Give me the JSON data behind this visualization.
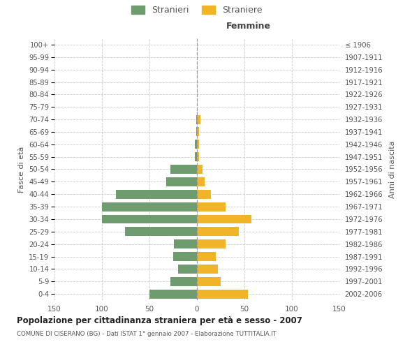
{
  "age_groups": [
    "0-4",
    "5-9",
    "10-14",
    "15-19",
    "20-24",
    "25-29",
    "30-34",
    "35-39",
    "40-44",
    "45-49",
    "50-54",
    "55-59",
    "60-64",
    "65-69",
    "70-74",
    "75-79",
    "80-84",
    "85-89",
    "90-94",
    "95-99",
    "100+"
  ],
  "birth_years": [
    "2002-2006",
    "1997-2001",
    "1992-1996",
    "1987-1991",
    "1982-1986",
    "1977-1981",
    "1972-1976",
    "1967-1971",
    "1962-1966",
    "1957-1961",
    "1952-1956",
    "1947-1951",
    "1942-1946",
    "1937-1941",
    "1932-1936",
    "1927-1931",
    "1922-1926",
    "1917-1921",
    "1912-1916",
    "1907-1911",
    "≤ 1906"
  ],
  "males": [
    50,
    28,
    20,
    25,
    24,
    76,
    100,
    100,
    85,
    32,
    28,
    2,
    2,
    1,
    1,
    0,
    0,
    0,
    0,
    0,
    0
  ],
  "females": [
    54,
    25,
    22,
    20,
    30,
    44,
    57,
    30,
    15,
    8,
    6,
    2,
    2,
    2,
    4,
    0,
    0,
    0,
    0,
    0,
    0
  ],
  "male_color": "#6e9c6e",
  "female_color": "#f0b429",
  "background_color": "#ffffff",
  "grid_color": "#cccccc",
  "title": "Popolazione per cittadinanza straniera per età e sesso - 2007",
  "subtitle": "COMUNE DI CISERANO (BG) - Dati ISTAT 1° gennaio 2007 - Elaborazione TUTTITALIA.IT",
  "xlabel_right": "Femmine",
  "ylabel_left": "Fasce di età",
  "ylabel_right": "Anni di nascita",
  "legend_males": "Stranieri",
  "legend_females": "Straniere",
  "xlim": 150
}
